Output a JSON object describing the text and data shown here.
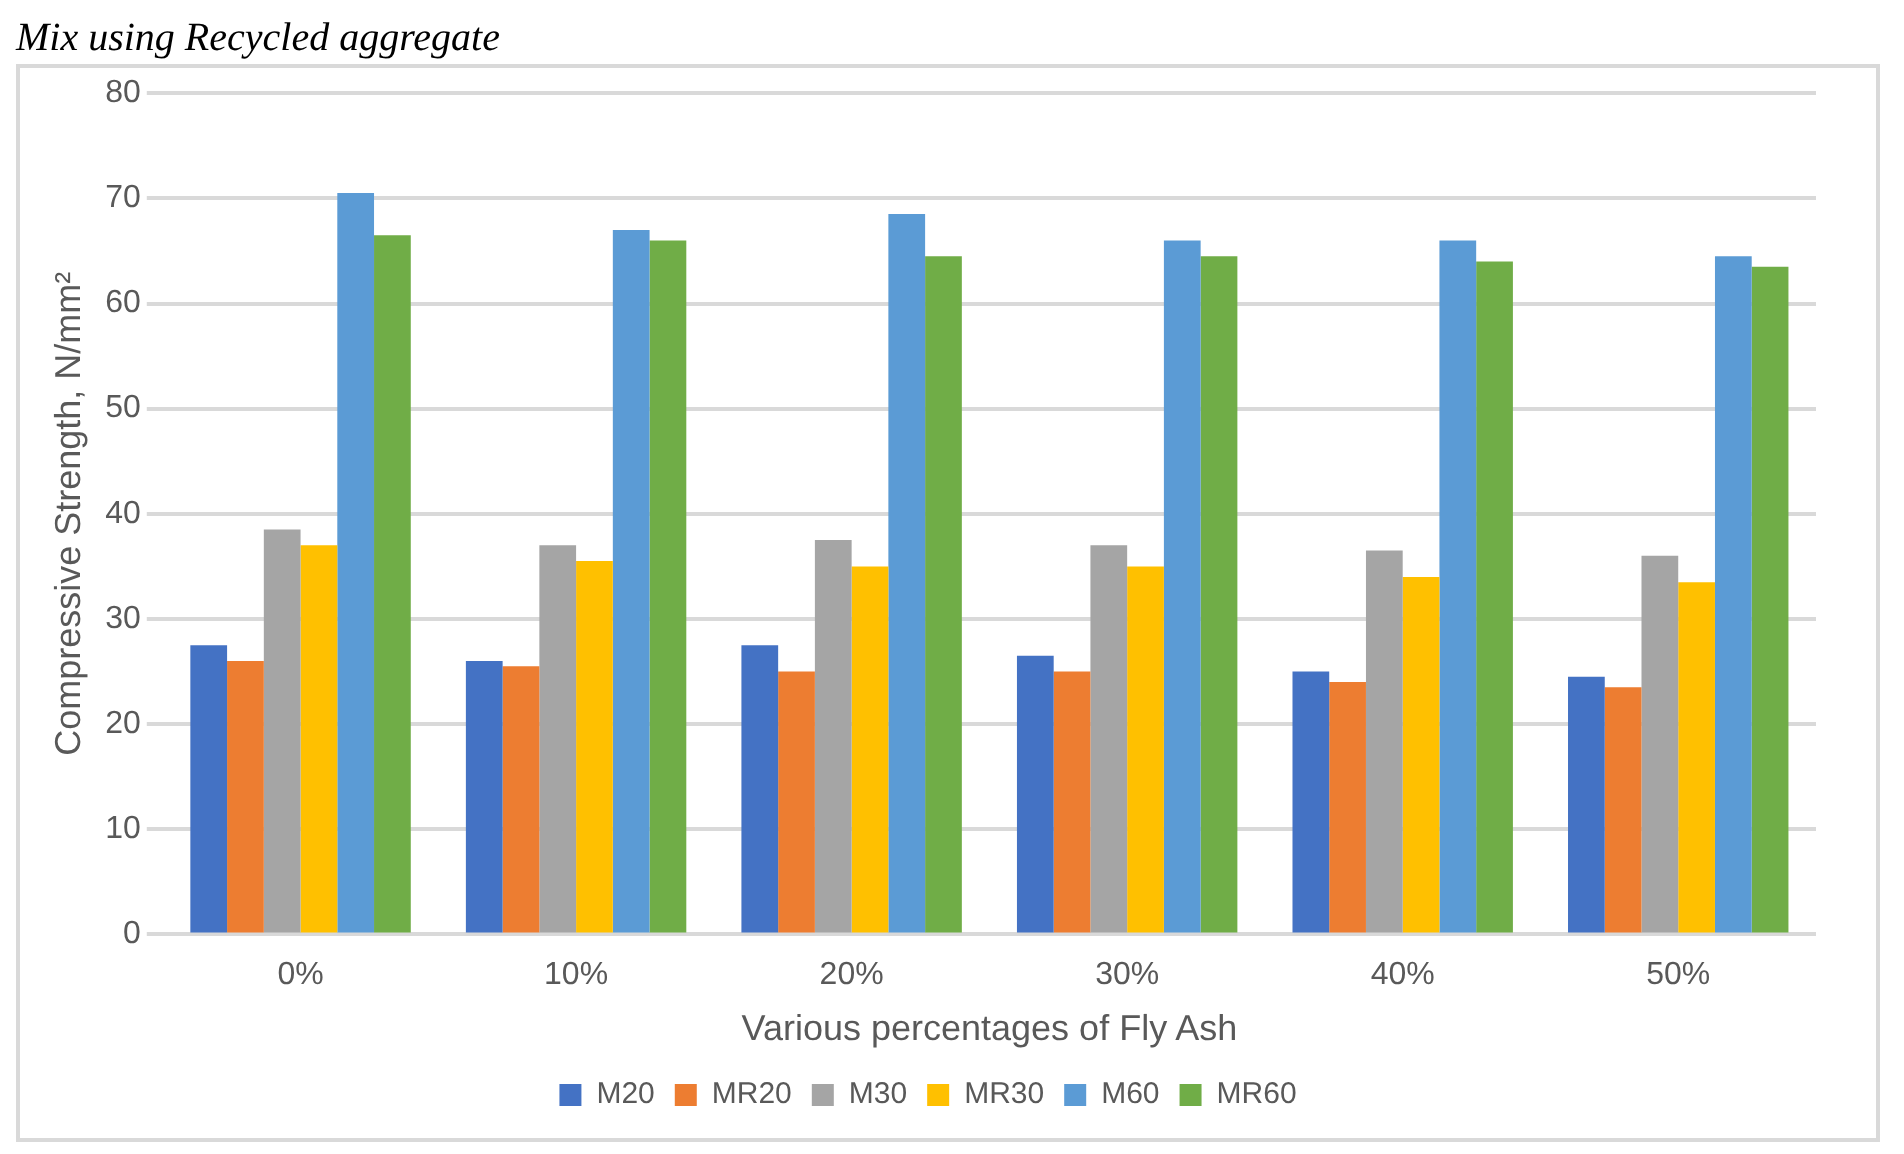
{
  "chart_data": {
    "type": "bar",
    "title": "Mix using Recycled aggregate",
    "xlabel": "Various percentages of Fly Ash",
    "ylabel": "Compressive Strength, N/mm²",
    "categories": [
      "0%",
      "10%",
      "20%",
      "30%",
      "40%",
      "50%"
    ],
    "series": [
      {
        "name": "M20",
        "color": "#4472c4",
        "values": [
          27.5,
          26,
          27.5,
          26.5,
          25,
          24.5
        ]
      },
      {
        "name": "MR20",
        "color": "#ed7d31",
        "values": [
          26,
          25.5,
          25,
          25,
          24,
          23.5
        ]
      },
      {
        "name": "M30",
        "color": "#a5a5a5",
        "values": [
          38.5,
          37,
          37.5,
          37,
          36.5,
          36
        ]
      },
      {
        "name": "MR30",
        "color": "#ffc000",
        "values": [
          37,
          35.5,
          35,
          35,
          34,
          33.5
        ]
      },
      {
        "name": "M60",
        "color": "#5b9bd5",
        "values": [
          70.5,
          67,
          68.5,
          66,
          66,
          64.5
        ]
      },
      {
        "name": "MR60",
        "color": "#70ad47",
        "values": [
          66.5,
          66,
          64.5,
          64.5,
          64,
          63.5
        ]
      }
    ],
    "ylim": [
      0,
      80
    ],
    "yticks": [
      0,
      10,
      20,
      30,
      40,
      50,
      60,
      70,
      80
    ],
    "grid": "y",
    "legend": "bottom"
  }
}
